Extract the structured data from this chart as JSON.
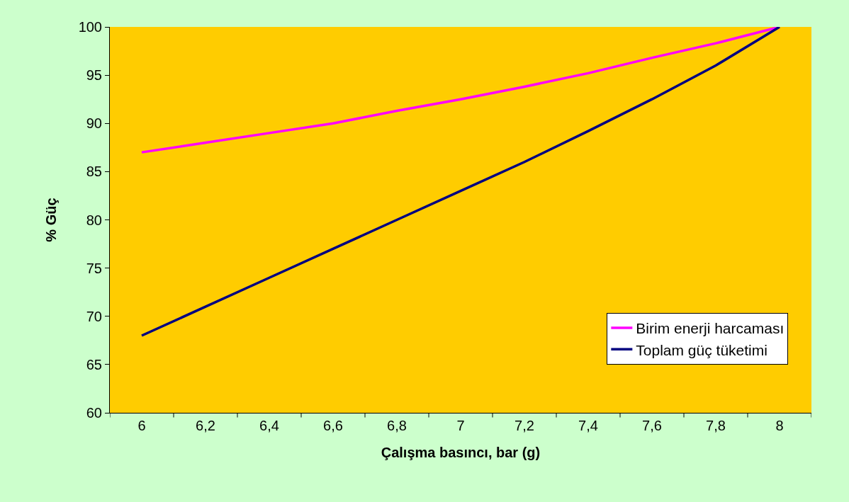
{
  "chart_data": {
    "type": "line",
    "xlabel": "Çalışma basıncı, bar (g)",
    "ylabel": "% Güç",
    "categories": [
      "6",
      "6,2",
      "6,4",
      "6,6",
      "6,8",
      "7",
      "7,2",
      "7,4",
      "7,6",
      "7,8",
      "8"
    ],
    "series": [
      {
        "name": "Birim enerji harcaması",
        "color": "#ff00ff",
        "values": [
          87,
          88,
          89,
          90,
          91.3,
          92.5,
          93.8,
          95.2,
          96.8,
          98.3,
          100
        ]
      },
      {
        "name": "Toplam güç tüketimi",
        "color": "#000080",
        "values": [
          68,
          71,
          74,
          77,
          80,
          83,
          86,
          89.2,
          92.5,
          96,
          100
        ]
      }
    ],
    "ylim": [
      60,
      100
    ],
    "yticks": [
      60,
      65,
      70,
      75,
      80,
      85,
      90,
      95,
      100
    ],
    "grid": false,
    "legend": "bottom right",
    "marker": "none",
    "line_style": "solid"
  }
}
